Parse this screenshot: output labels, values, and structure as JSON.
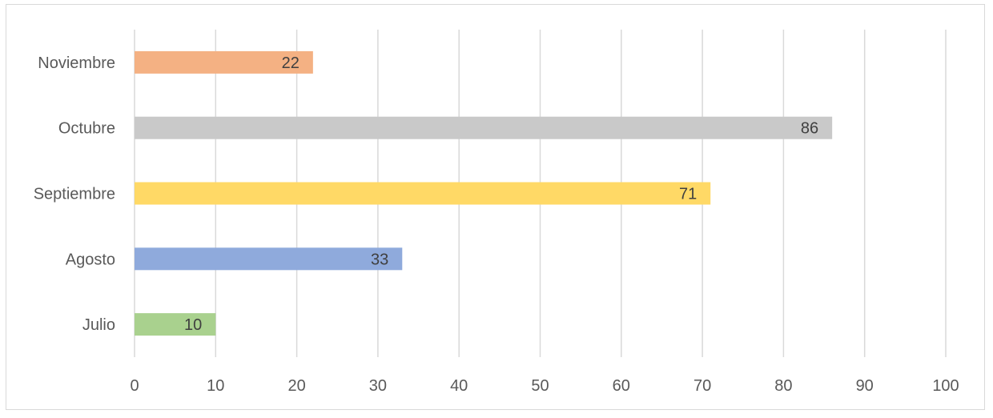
{
  "chart_data": {
    "type": "bar",
    "orientation": "horizontal",
    "categories": [
      "Julio",
      "Agosto",
      "Septiembre",
      "Octubre",
      "Noviembre"
    ],
    "values": [
      10,
      33,
      71,
      86,
      22
    ],
    "colors": [
      "#a9d18e",
      "#8faadc",
      "#ffd966",
      "#c9c9c9",
      "#f4b183"
    ],
    "xlim": [
      0,
      100
    ],
    "xticks": [
      "0",
      "10",
      "20",
      "30",
      "40",
      "50",
      "60",
      "70",
      "80",
      "90",
      "100"
    ],
    "grid": "vertical",
    "data_labels": "inside-end",
    "legend": "none"
  }
}
